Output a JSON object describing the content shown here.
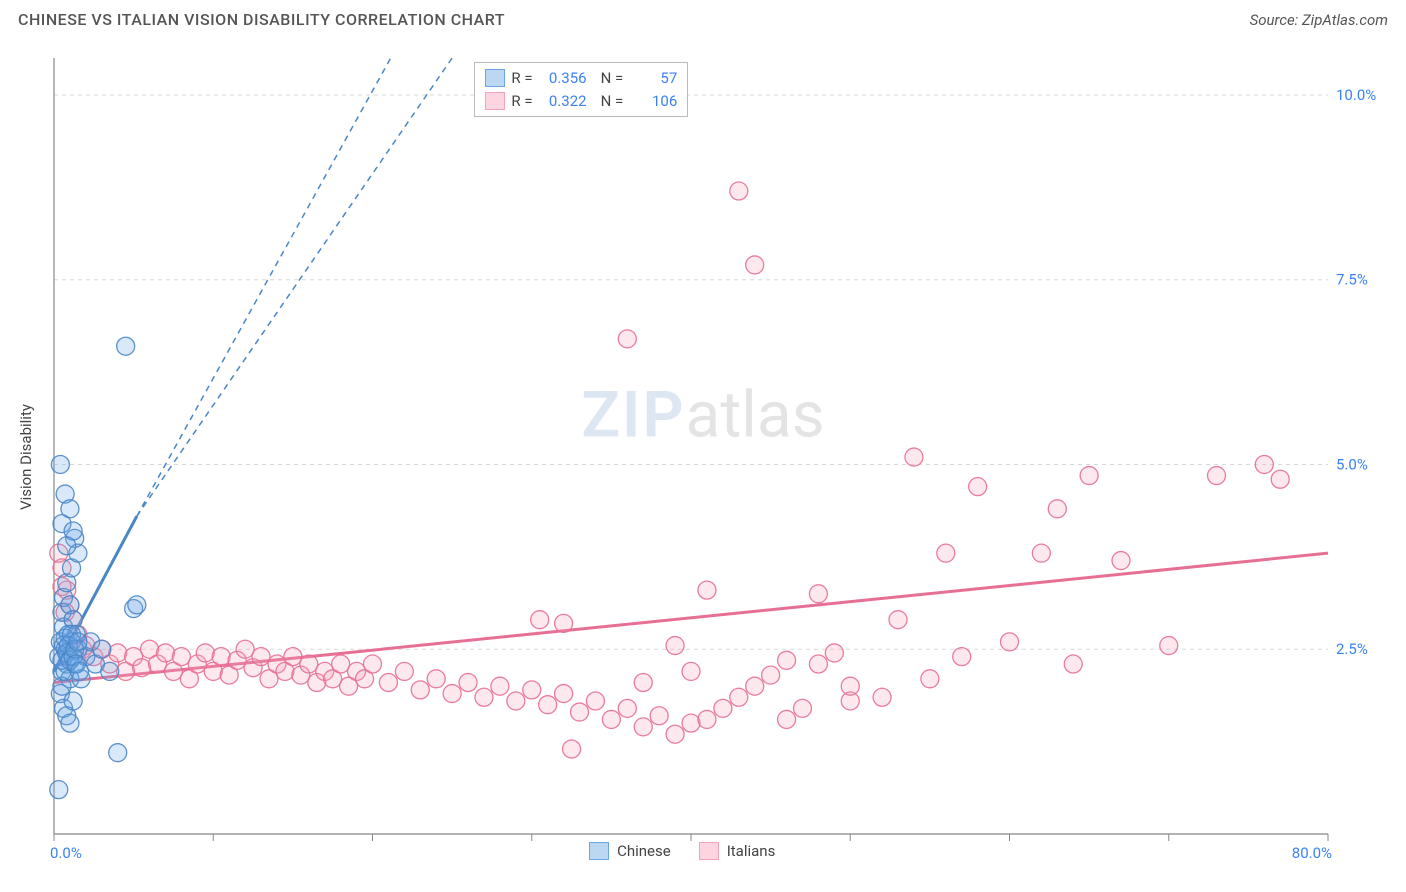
{
  "header": {
    "title": "CHINESE VS ITALIAN VISION DISABILITY CORRELATION CHART",
    "source_prefix": "Source: ",
    "source_name": "ZipAtlas.com"
  },
  "watermark": {
    "part1": "ZIP",
    "part2": "atlas"
  },
  "chart": {
    "type": "scatter",
    "ylabel": "Vision Disability",
    "background_color": "#ffffff",
    "grid_color": "#d8d8d8",
    "axis_color": "#888888",
    "axis_label_color": "#3b82f6",
    "axis_label_fontsize": 15,
    "x": {
      "min": 0,
      "max": 80,
      "tick_step": 10,
      "label_min": "0.0%",
      "label_max": "80.0%"
    },
    "y": {
      "min": 0,
      "max": 10.5,
      "gridlines": [
        2.5,
        5.0,
        7.5,
        10.0
      ],
      "labels": [
        "2.5%",
        "5.0%",
        "7.5%",
        "10.0%"
      ]
    },
    "marker_radius": 9,
    "marker_fill_opacity": 0.25,
    "marker_stroke_opacity": 0.9,
    "trend_line_width": 3,
    "trend_dash": "6,5",
    "series": [
      {
        "name": "Chinese",
        "color": "#6aa6e6",
        "stroke": "#4a86c6",
        "legend_swatch_fill": "#bcd7f2",
        "legend_swatch_stroke": "#6aa6e6",
        "stats": {
          "R": "0.356",
          "N": "57"
        },
        "trend": {
          "x1": 0,
          "y1": 2.2,
          "x2": 5.2,
          "y2": 4.3,
          "extend_x2": 25,
          "extend_y2": 12.0
        },
        "points": [
          [
            0.3,
            2.4
          ],
          [
            0.4,
            2.6
          ],
          [
            0.5,
            2.2
          ],
          [
            0.6,
            2.8
          ],
          [
            0.7,
            2.5
          ],
          [
            0.8,
            2.3
          ],
          [
            0.9,
            2.7
          ],
          [
            1.0,
            2.1
          ],
          [
            0.5,
            3.0
          ],
          [
            0.6,
            3.2
          ],
          [
            0.8,
            3.4
          ],
          [
            1.0,
            3.1
          ],
          [
            1.2,
            2.9
          ],
          [
            1.4,
            2.7
          ],
          [
            0.4,
            1.9
          ],
          [
            0.6,
            1.7
          ],
          [
            0.8,
            1.6
          ],
          [
            1.0,
            1.5
          ],
          [
            1.2,
            1.8
          ],
          [
            0.3,
            0.6
          ],
          [
            0.5,
            2.0
          ],
          [
            0.7,
            2.2
          ],
          [
            0.9,
            2.4
          ],
          [
            1.1,
            2.6
          ],
          [
            1.3,
            2.3
          ],
          [
            1.5,
            2.5
          ],
          [
            1.7,
            2.1
          ],
          [
            2.0,
            2.4
          ],
          [
            2.3,
            2.6
          ],
          [
            2.6,
            2.3
          ],
          [
            3.0,
            2.5
          ],
          [
            3.5,
            2.2
          ],
          [
            4.0,
            1.1
          ],
          [
            5.0,
            3.05
          ],
          [
            5.2,
            3.1
          ],
          [
            0.5,
            4.2
          ],
          [
            0.7,
            4.6
          ],
          [
            0.4,
            5.0
          ],
          [
            1.1,
            3.6
          ],
          [
            1.3,
            4.0
          ],
          [
            1.5,
            3.8
          ],
          [
            1.0,
            4.4
          ],
          [
            1.2,
            4.1
          ],
          [
            0.8,
            3.9
          ],
          [
            4.5,
            6.6
          ],
          [
            0.5,
            2.35
          ],
          [
            0.6,
            2.55
          ],
          [
            0.7,
            2.65
          ],
          [
            0.8,
            2.45
          ],
          [
            0.9,
            2.55
          ],
          [
            1.0,
            2.35
          ],
          [
            1.1,
            2.7
          ],
          [
            1.2,
            2.4
          ],
          [
            1.3,
            2.5
          ],
          [
            1.4,
            2.3
          ],
          [
            1.5,
            2.6
          ],
          [
            1.6,
            2.2
          ]
        ]
      },
      {
        "name": "Italians",
        "color": "#f5a3b8",
        "stroke": "#e76f94",
        "legend_swatch_fill": "#fcd5e0",
        "legend_swatch_stroke": "#f5a3b8",
        "stats": {
          "R": "0.322",
          "N": "106"
        },
        "trend": {
          "x1": 0,
          "y1": 2.05,
          "x2": 80,
          "y2": 3.8
        },
        "points": [
          [
            0.5,
            3.6
          ],
          [
            0.8,
            3.3
          ],
          [
            1.0,
            3.1
          ],
          [
            1.2,
            2.9
          ],
          [
            1.5,
            2.7
          ],
          [
            1.8,
            2.5
          ],
          [
            2.0,
            2.55
          ],
          [
            2.5,
            2.4
          ],
          [
            3.0,
            2.5
          ],
          [
            3.5,
            2.3
          ],
          [
            4.0,
            2.45
          ],
          [
            4.5,
            2.2
          ],
          [
            5.0,
            2.4
          ],
          [
            5.5,
            2.25
          ],
          [
            6.0,
            2.5
          ],
          [
            6.5,
            2.3
          ],
          [
            7.0,
            2.45
          ],
          [
            7.5,
            2.2
          ],
          [
            8.0,
            2.4
          ],
          [
            8.5,
            2.1
          ],
          [
            9.0,
            2.3
          ],
          [
            9.5,
            2.45
          ],
          [
            10.0,
            2.2
          ],
          [
            10.5,
            2.4
          ],
          [
            11.0,
            2.15
          ],
          [
            11.5,
            2.35
          ],
          [
            12.0,
            2.5
          ],
          [
            12.5,
            2.25
          ],
          [
            13.0,
            2.4
          ],
          [
            13.5,
            2.1
          ],
          [
            14.0,
            2.3
          ],
          [
            14.5,
            2.2
          ],
          [
            15.0,
            2.4
          ],
          [
            15.5,
            2.15
          ],
          [
            16.0,
            2.3
          ],
          [
            16.5,
            2.05
          ],
          [
            17.0,
            2.2
          ],
          [
            17.5,
            2.1
          ],
          [
            18.0,
            2.3
          ],
          [
            18.5,
            2.0
          ],
          [
            19.0,
            2.2
          ],
          [
            19.5,
            2.1
          ],
          [
            20.0,
            2.3
          ],
          [
            21.0,
            2.05
          ],
          [
            22.0,
            2.2
          ],
          [
            23.0,
            1.95
          ],
          [
            24.0,
            2.1
          ],
          [
            25.0,
            1.9
          ],
          [
            26.0,
            2.05
          ],
          [
            27.0,
            1.85
          ],
          [
            28.0,
            2.0
          ],
          [
            29.0,
            1.8
          ],
          [
            30.0,
            1.95
          ],
          [
            31.0,
            1.75
          ],
          [
            32.0,
            1.9
          ],
          [
            33.0,
            1.65
          ],
          [
            34.0,
            1.8
          ],
          [
            35.0,
            1.55
          ],
          [
            36.0,
            1.7
          ],
          [
            37.0,
            1.45
          ],
          [
            38.0,
            1.6
          ],
          [
            39.0,
            1.35
          ],
          [
            40.0,
            1.5
          ],
          [
            41.0,
            1.55
          ],
          [
            42.0,
            1.7
          ],
          [
            43.0,
            1.85
          ],
          [
            44.0,
            2.0
          ],
          [
            45.0,
            2.15
          ],
          [
            46.0,
            1.55
          ],
          [
            47.0,
            1.7
          ],
          [
            48.0,
            2.3
          ],
          [
            49.0,
            2.45
          ],
          [
            50.0,
            1.8
          ],
          [
            32.0,
            2.85
          ],
          [
            36.0,
            6.7
          ],
          [
            37.0,
            2.05
          ],
          [
            39.0,
            2.55
          ],
          [
            40.0,
            2.2
          ],
          [
            41.0,
            3.3
          ],
          [
            43.0,
            8.7
          ],
          [
            44.0,
            7.7
          ],
          [
            46.0,
            2.35
          ],
          [
            48.0,
            3.25
          ],
          [
            50.0,
            2.0
          ],
          [
            52.0,
            1.85
          ],
          [
            53.0,
            2.9
          ],
          [
            54.0,
            5.1
          ],
          [
            55.0,
            2.1
          ],
          [
            56.0,
            3.8
          ],
          [
            57.0,
            2.4
          ],
          [
            58.0,
            4.7
          ],
          [
            60.0,
            2.6
          ],
          [
            62.0,
            3.8
          ],
          [
            63.0,
            4.4
          ],
          [
            64.0,
            2.3
          ],
          [
            65.0,
            4.85
          ],
          [
            67.0,
            3.7
          ],
          [
            70.0,
            2.55
          ],
          [
            73.0,
            4.85
          ],
          [
            76.0,
            5.0
          ],
          [
            77.0,
            4.8
          ],
          [
            32.5,
            1.15
          ],
          [
            30.5,
            2.9
          ],
          [
            0.3,
            3.8
          ],
          [
            0.5,
            3.35
          ],
          [
            0.7,
            3.0
          ]
        ]
      }
    ],
    "legend_bottom": [
      {
        "label": "Chinese",
        "fill": "#bcd7f2",
        "stroke": "#6aa6e6"
      },
      {
        "label": "Italians",
        "fill": "#fcd5e0",
        "stroke": "#f5a3b8"
      }
    ]
  },
  "labels": {
    "R": "R =",
    "N": "N ="
  }
}
